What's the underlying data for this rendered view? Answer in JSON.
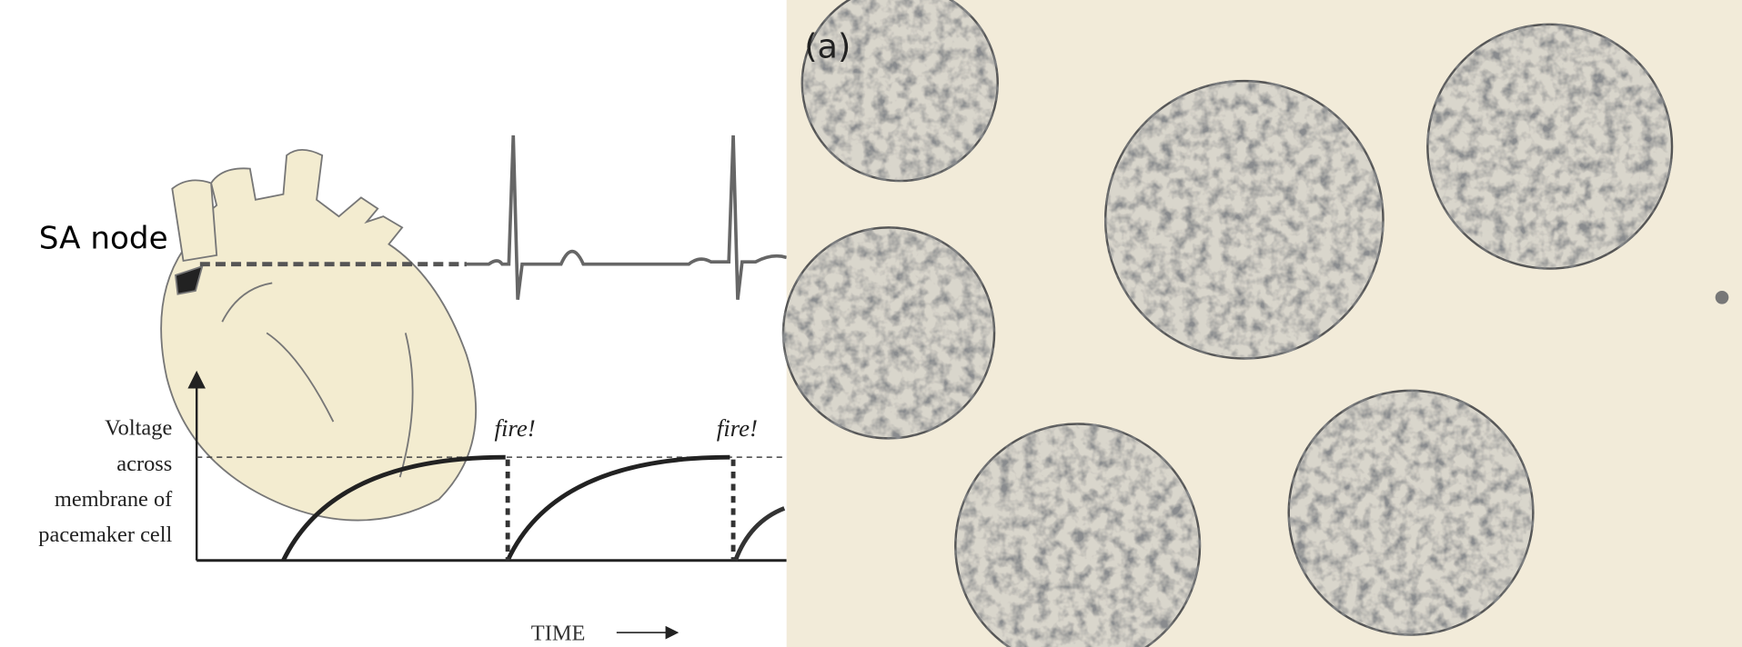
{
  "diagram": {
    "sa_node_label": "SA node",
    "voltage_label": [
      "Voltage",
      "across",
      "membrane of",
      "pacemaker cell"
    ],
    "fire_labels": [
      "fire!",
      "fire!"
    ],
    "time_label": "TIME"
  },
  "photo": {
    "panel_label": "(a)"
  }
}
